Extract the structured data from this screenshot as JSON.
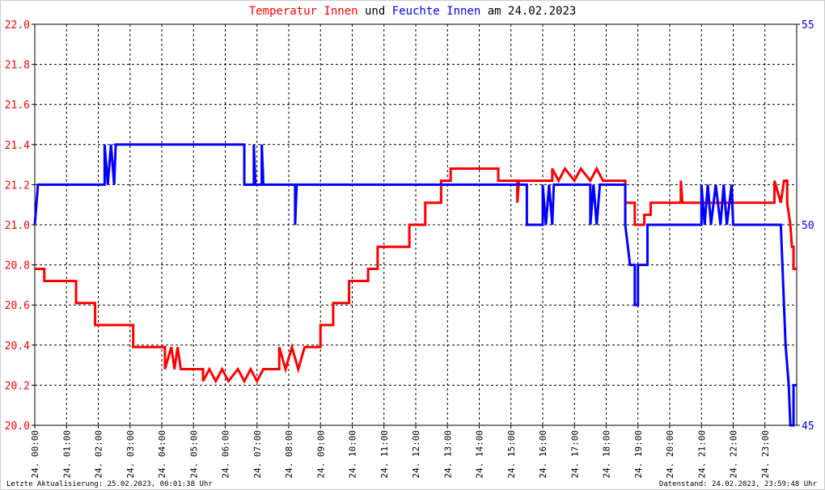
{
  "chart_data": {
    "type": "line",
    "title_connector": "und",
    "title_suffix": "am 24.02.2023",
    "xlim": [
      0,
      24
    ],
    "xticks": [
      {
        "value": 0,
        "label": "24. 00:00"
      },
      {
        "value": 1,
        "label": "24. 01:00"
      },
      {
        "value": 2,
        "label": "24. 02:00"
      },
      {
        "value": 3,
        "label": "24. 03:00"
      },
      {
        "value": 4,
        "label": "24. 04:00"
      },
      {
        "value": 5,
        "label": "24. 05:00"
      },
      {
        "value": 6,
        "label": "24. 06:00"
      },
      {
        "value": 7,
        "label": "24. 07:00"
      },
      {
        "value": 8,
        "label": "24. 08:00"
      },
      {
        "value": 9,
        "label": "24. 09:00"
      },
      {
        "value": 10,
        "label": "24. 10:00"
      },
      {
        "value": 11,
        "label": "24. 11:00"
      },
      {
        "value": 12,
        "label": "24. 12:00"
      },
      {
        "value": 13,
        "label": "24. 13:00"
      },
      {
        "value": 14,
        "label": "24. 14:00"
      },
      {
        "value": 15,
        "label": "24. 15:00"
      },
      {
        "value": 16,
        "label": "24. 16:00"
      },
      {
        "value": 17,
        "label": "24. 17:00"
      },
      {
        "value": 18,
        "label": "24. 18:00"
      },
      {
        "value": 19,
        "label": "24. 19:00"
      },
      {
        "value": 20,
        "label": "24. 20:00"
      },
      {
        "value": 21,
        "label": "24. 21:00"
      },
      {
        "value": 22,
        "label": "24. 22:00"
      },
      {
        "value": 23,
        "label": "24. 23:00"
      }
    ],
    "ylim": [
      20,
      22
    ],
    "yticks": [
      {
        "value": 20,
        "label": "20.0"
      },
      {
        "value": 20.2,
        "label": "20.2"
      },
      {
        "value": 20.4,
        "label": "20.4"
      },
      {
        "value": 20.6,
        "label": "20.6"
      },
      {
        "value": 20.8,
        "label": "20.8"
      },
      {
        "value": 21,
        "label": "21.0"
      },
      {
        "value": 21.2,
        "label": "21.2"
      },
      {
        "value": 21.4,
        "label": "21.4"
      },
      {
        "value": 21.6,
        "label": "21.6"
      },
      {
        "value": 21.8,
        "label": "21.8"
      },
      {
        "value": 22,
        "label": "22.0"
      }
    ],
    "y2lim": [
      45,
      55
    ],
    "y2ticks": [
      45,
      50,
      55
    ],
    "grid": true,
    "series": [
      {
        "name": "Temperatur Innen",
        "color": "#ff0000",
        "axis": "y",
        "x": [
          0,
          0.3,
          0.3,
          1.3,
          1.3,
          1.9,
          1.9,
          3.1,
          3.1,
          4.1,
          4.1,
          4.3,
          4.4,
          4.5,
          4.6,
          5.3,
          5.3,
          5.5,
          5.7,
          5.9,
          6.1,
          6.4,
          6.6,
          6.8,
          7.0,
          7.2,
          7.7,
          7.7,
          7.9,
          8.1,
          8.3,
          8.5,
          8.7,
          9.0,
          9.0,
          9.4,
          9.4,
          9.9,
          9.9,
          10.5,
          10.5,
          10.8,
          10.8,
          11.8,
          11.8,
          12.3,
          12.3,
          12.8,
          12.8,
          13.1,
          13.1,
          14.6,
          14.6,
          15.2,
          15.2,
          15.25,
          16.3,
          16.3,
          16.5,
          16.7,
          17.0,
          17.2,
          17.5,
          17.7,
          17.9,
          18.6,
          18.6,
          18.9,
          18.9,
          19.2,
          19.2,
          19.4,
          19.4,
          20.35,
          20.35,
          20.4,
          23.3,
          23.3,
          23.5,
          23.6,
          23.7,
          23.7,
          23.8,
          23.85,
          23.9,
          23.9,
          24
        ],
        "values": [
          20.78,
          20.78,
          20.72,
          20.72,
          20.61,
          20.61,
          20.5,
          20.5,
          20.39,
          20.39,
          20.28,
          20.39,
          20.28,
          20.39,
          20.28,
          20.28,
          20.22,
          20.28,
          20.22,
          20.28,
          20.22,
          20.28,
          20.22,
          20.28,
          20.22,
          20.28,
          20.28,
          20.39,
          20.28,
          20.39,
          20.28,
          20.39,
          20.39,
          20.39,
          20.5,
          20.5,
          20.61,
          20.61,
          20.72,
          20.72,
          20.78,
          20.78,
          20.89,
          20.89,
          21.0,
          21.0,
          21.11,
          21.11,
          21.22,
          21.22,
          21.28,
          21.28,
          21.22,
          21.22,
          21.11,
          21.22,
          21.22,
          21.28,
          21.22,
          21.28,
          21.22,
          21.28,
          21.22,
          21.28,
          21.22,
          21.22,
          21.11,
          21.11,
          21.0,
          21.0,
          21.05,
          21.05,
          21.11,
          21.11,
          21.22,
          21.11,
          21.11,
          21.22,
          21.11,
          21.22,
          21.22,
          21.11,
          21.0,
          20.89,
          20.89,
          20.78,
          20.78
        ]
      },
      {
        "name": "Feuchte Innen",
        "color": "#0000ff",
        "axis": "y2",
        "x": [
          0,
          0.1,
          2.2,
          2.2,
          2.3,
          2.4,
          2.5,
          2.55,
          6.6,
          6.6,
          6.9,
          6.9,
          6.95,
          7.15,
          7.15,
          7.2,
          8.2,
          8.2,
          8.25,
          15.5,
          15.5,
          16.0,
          16.0,
          16.1,
          16.2,
          16.3,
          16.35,
          17.5,
          17.5,
          17.6,
          17.7,
          17.8,
          18.6,
          18.6,
          18.75,
          18.9,
          18.9,
          19.0,
          19.0,
          19.3,
          19.3,
          21.0,
          21.0,
          21.1,
          21.2,
          21.3,
          21.45,
          21.6,
          21.7,
          21.8,
          21.95,
          22.0,
          23.5,
          23.55,
          23.65,
          23.75,
          23.8,
          23.9,
          23.9,
          24
        ],
        "values": [
          50,
          51,
          51,
          52,
          51,
          52,
          51,
          52,
          52,
          51,
          51,
          52,
          51,
          51,
          52,
          51,
          51,
          50,
          51,
          51,
          50,
          50,
          51,
          50,
          51,
          50,
          51,
          51,
          50,
          51,
          50,
          51,
          51,
          50,
          49,
          49,
          48,
          48,
          49,
          49,
          50,
          50,
          51,
          50,
          51,
          50,
          51,
          50,
          51,
          50,
          51,
          50,
          50,
          49,
          47,
          46,
          45,
          45,
          46,
          46
        ]
      }
    ],
    "footer_left": "Letzte Aktualisierung: 25.02.2023, 00:01:38 Uhr",
    "footer_right": "Datenstand: 24.02.2023, 23:59:48 Uhr"
  }
}
